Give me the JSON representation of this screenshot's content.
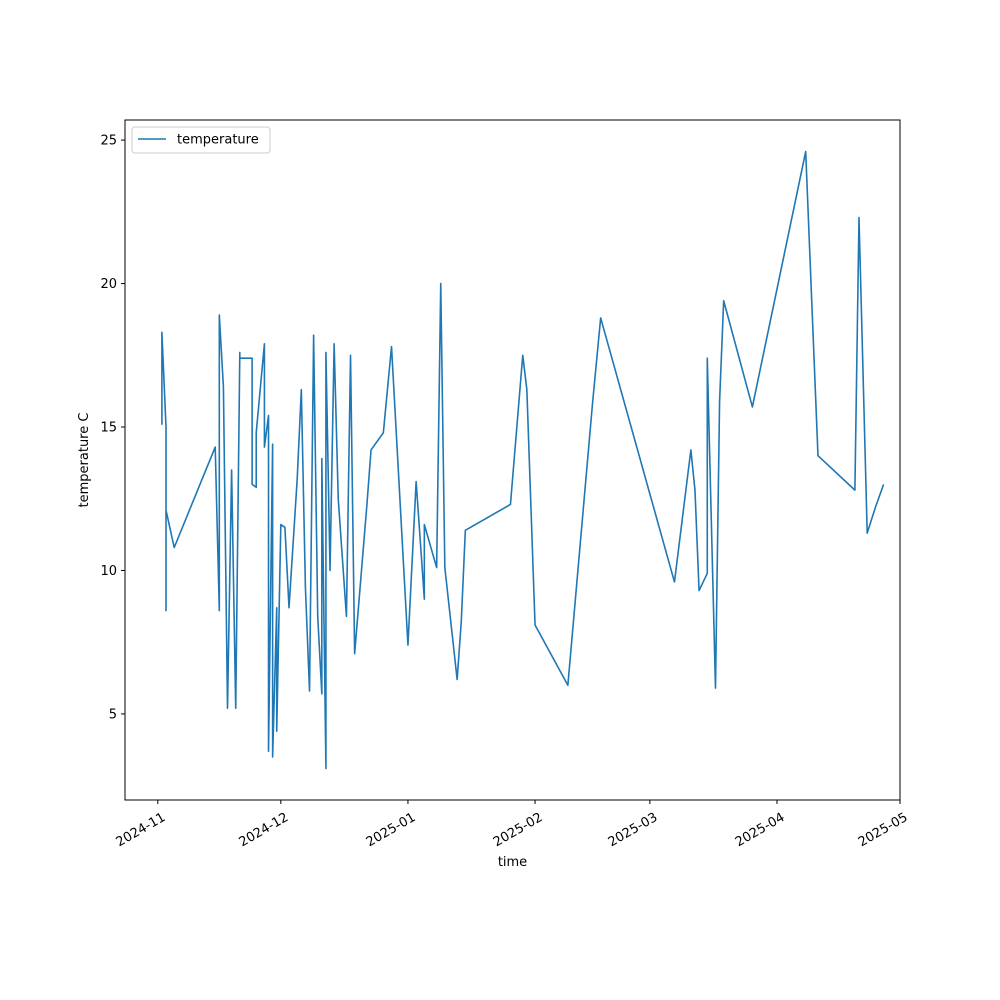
{
  "chart_data": {
    "type": "line",
    "title": "",
    "xlabel": "time",
    "ylabel": "temperature C",
    "x_axis_type": "date",
    "xlim": [
      "2024-10-24",
      "2025-05-01"
    ],
    "ylim": [
      2.0,
      25.7
    ],
    "x_ticks": [
      "2024-11-01",
      "2024-12-01",
      "2025-01-01",
      "2025-02-01",
      "2025-03-01",
      "2025-04-01",
      "2025-05-01"
    ],
    "x_tick_labels": [
      "2024-11",
      "2024-12",
      "2025-01",
      "2025-02",
      "2025-03",
      "2025-04",
      "2025-05"
    ],
    "y_ticks": [
      5,
      10,
      15,
      20,
      25
    ],
    "y_tick_labels": [
      "5",
      "10",
      "15",
      "20",
      "25"
    ],
    "grid": false,
    "legend": {
      "position": "top-left",
      "entries": [
        "temperature"
      ]
    },
    "series": [
      {
        "name": "temperature",
        "color": "#1f77b4",
        "points": [
          [
            "2024-11-02",
            15.7
          ],
          [
            "2024-11-02",
            15.1
          ],
          [
            "2024-11-02",
            18.3
          ],
          [
            "2024-11-03",
            15.0
          ],
          [
            "2024-11-03",
            8.6
          ],
          [
            "2024-11-03",
            12.1
          ],
          [
            "2024-11-05",
            10.8
          ],
          [
            "2024-11-15",
            14.3
          ],
          [
            "2024-11-16",
            8.6
          ],
          [
            "2024-11-16",
            18.9
          ],
          [
            "2024-11-17",
            16.4
          ],
          [
            "2024-11-18",
            5.2
          ],
          [
            "2024-11-19",
            13.5
          ],
          [
            "2024-11-20",
            5.2
          ],
          [
            "2024-11-21",
            17.6
          ],
          [
            "2024-11-21",
            17.4
          ],
          [
            "2024-11-24",
            17.4
          ],
          [
            "2024-11-24",
            13.0
          ],
          [
            "2024-11-25",
            12.9
          ],
          [
            "2024-11-25",
            14.8
          ],
          [
            "2024-11-27",
            17.9
          ],
          [
            "2024-11-27",
            14.3
          ],
          [
            "2024-11-28",
            15.4
          ],
          [
            "2024-11-28",
            3.7
          ],
          [
            "2024-11-29",
            14.4
          ],
          [
            "2024-11-29",
            3.5
          ],
          [
            "2024-11-30",
            8.7
          ],
          [
            "2024-11-30",
            4.4
          ],
          [
            "2024-12-01",
            11.6
          ],
          [
            "2024-12-02",
            11.5
          ],
          [
            "2024-12-03",
            8.7
          ],
          [
            "2024-12-05",
            13.2
          ],
          [
            "2024-12-06",
            16.3
          ],
          [
            "2024-12-07",
            9.4
          ],
          [
            "2024-12-08",
            5.8
          ],
          [
            "2024-12-09",
            18.2
          ],
          [
            "2024-12-10",
            8.4
          ],
          [
            "2024-12-11",
            5.7
          ],
          [
            "2024-12-11",
            13.9
          ],
          [
            "2024-12-12",
            3.1
          ],
          [
            "2024-12-12",
            17.6
          ],
          [
            "2024-12-13",
            10.0
          ],
          [
            "2024-12-14",
            17.9
          ],
          [
            "2024-12-15",
            12.5
          ],
          [
            "2024-12-17",
            8.4
          ],
          [
            "2024-12-18",
            17.5
          ],
          [
            "2024-12-19",
            7.1
          ],
          [
            "2024-12-22",
            12.3
          ],
          [
            "2024-12-23",
            14.2
          ],
          [
            "2024-12-26",
            14.8
          ],
          [
            "2024-12-28",
            17.8
          ],
          [
            "2025-01-01",
            7.4
          ],
          [
            "2025-01-03",
            13.1
          ],
          [
            "2025-01-05",
            9.0
          ],
          [
            "2025-01-05",
            11.6
          ],
          [
            "2025-01-08",
            10.1
          ],
          [
            "2025-01-09",
            20.0
          ],
          [
            "2025-01-10",
            10.1
          ],
          [
            "2025-01-13",
            6.2
          ],
          [
            "2025-01-14",
            8.2
          ],
          [
            "2025-01-15",
            11.4
          ],
          [
            "2025-01-26",
            12.3
          ],
          [
            "2025-01-29",
            17.5
          ],
          [
            "2025-01-30",
            16.3
          ],
          [
            "2025-02-01",
            8.1
          ],
          [
            "2025-02-09",
            6.0
          ],
          [
            "2025-02-15",
            15.8
          ],
          [
            "2025-02-17",
            18.8
          ],
          [
            "2025-03-07",
            9.6
          ],
          [
            "2025-03-11",
            14.2
          ],
          [
            "2025-03-12",
            12.8
          ],
          [
            "2025-03-13",
            9.3
          ],
          [
            "2025-03-15",
            9.9
          ],
          [
            "2025-03-15",
            17.4
          ],
          [
            "2025-03-17",
            5.9
          ],
          [
            "2025-03-18",
            15.9
          ],
          [
            "2025-03-19",
            19.4
          ],
          [
            "2025-03-26",
            15.7
          ],
          [
            "2025-04-08",
            24.6
          ],
          [
            "2025-04-11",
            14.0
          ],
          [
            "2025-04-20",
            12.8
          ],
          [
            "2025-04-21",
            22.3
          ],
          [
            "2025-04-23",
            11.3
          ],
          [
            "2025-04-25",
            12.2
          ],
          [
            "2025-04-27",
            13.0
          ]
        ]
      }
    ]
  }
}
